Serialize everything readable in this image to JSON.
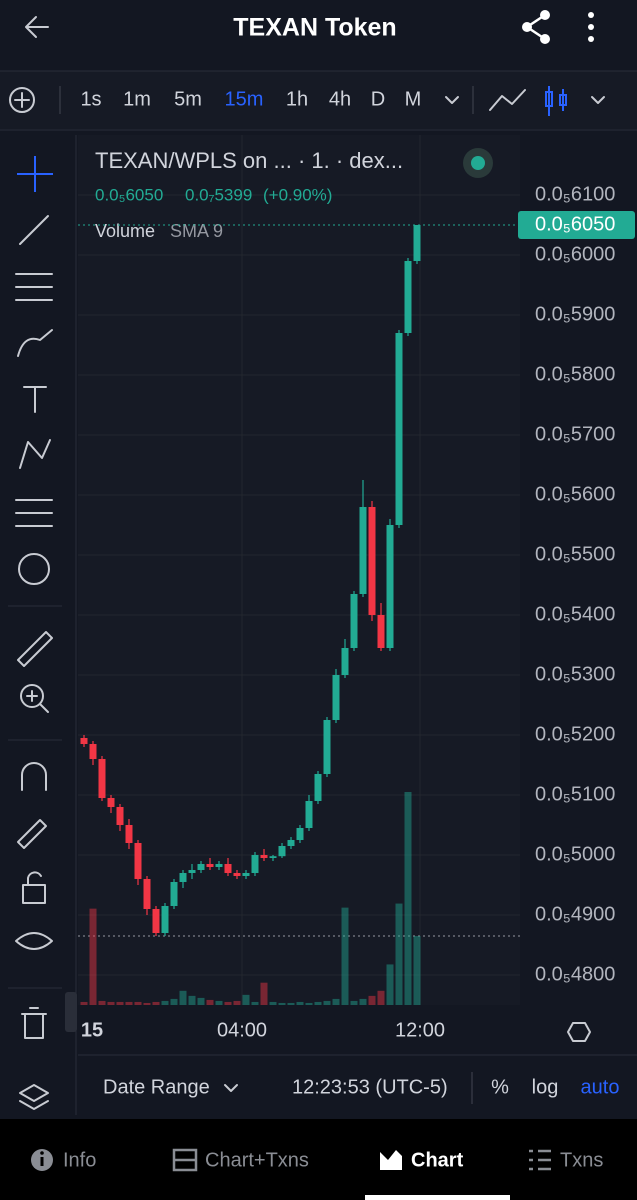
{
  "header": {
    "title": "TEXAN Token"
  },
  "intervals": [
    "1s",
    "1m",
    "5m",
    "15m",
    "1h",
    "4h",
    "D",
    "M"
  ],
  "active_interval": "15m",
  "chart_data": {
    "type": "candlestick",
    "title": "TEXAN/WPLS on ... · 1. · dex...",
    "legend_values": [
      "0.0₅6050",
      "0.0₇5399",
      "(+0.90%)"
    ],
    "volume_label": "Volume",
    "volume_study": "SMA 9",
    "up_color": "#22ab94",
    "down_color": "#f23645",
    "ylim": [
      4.75e-06,
      6.2e-06
    ],
    "yticks": [
      {
        "value": 6.1e-06,
        "label": "0.0₅6100"
      },
      {
        "value": 6e-06,
        "label": "0.0₅6000"
      },
      {
        "value": 5.9e-06,
        "label": "0.0₅5900"
      },
      {
        "value": 5.8e-06,
        "label": "0.0₅5800"
      },
      {
        "value": 5.7e-06,
        "label": "0.0₅5700"
      },
      {
        "value": 5.6e-06,
        "label": "0.0₅5600"
      },
      {
        "value": 5.5e-06,
        "label": "0.0₅5500"
      },
      {
        "value": 5.4e-06,
        "label": "0.0₅5400"
      },
      {
        "value": 5.3e-06,
        "label": "0.0₅5300"
      },
      {
        "value": 5.2e-06,
        "label": "0.0₅5200"
      },
      {
        "value": 5.1e-06,
        "label": "0.0₅5100"
      },
      {
        "value": 5e-06,
        "label": "0.0₅5000"
      },
      {
        "value": 4.9e-06,
        "label": "0.0₅4900"
      },
      {
        "value": 4.8e-06,
        "label": "0.0₅4800"
      }
    ],
    "last_price": {
      "value": 6.05e-06,
      "label": "0.0₅6050"
    },
    "x_labels": [
      "15",
      "04:00",
      "12:00"
    ],
    "open": [
      5.195e-06,
      5.185e-06,
      5.16e-06,
      5.095e-06,
      5.08e-06,
      5.05e-06,
      5.02e-06,
      4.96e-06,
      4.91e-06,
      4.87e-06,
      4.915e-06,
      4.955e-06,
      4.97e-06,
      4.975e-06,
      4.985e-06,
      4.98e-06,
      4.985e-06,
      4.97e-06,
      4.965e-06,
      4.97e-06,
      5e-06,
      4.995e-06,
      4.998e-06,
      5.015e-06,
      5.025e-06,
      5.045e-06,
      5.09e-06,
      5.135e-06,
      5.225e-06,
      5.3e-06,
      5.345e-06,
      5.435e-06,
      5.58e-06,
      5.4e-06,
      5.345e-06,
      5.55e-06,
      5.87e-06,
      5.99e-06
    ],
    "high": [
      5.2e-06,
      5.19e-06,
      5.165e-06,
      5.1e-06,
      5.085e-06,
      5.06e-06,
      5.025e-06,
      4.965e-06,
      4.915e-06,
      4.92e-06,
      4.96e-06,
      4.975e-06,
      4.985e-06,
      4.99e-06,
      4.995e-06,
      4.99e-06,
      4.995e-06,
      4.975e-06,
      4.975e-06,
      5.005e-06,
      5.01e-06,
      5e-06,
      5.02e-06,
      5.03e-06,
      5.05e-06,
      5.1e-06,
      5.14e-06,
      5.23e-06,
      5.31e-06,
      5.36e-06,
      5.44e-06,
      5.625e-06,
      5.59e-06,
      5.42e-06,
      5.56e-06,
      5.875e-06,
      5.995e-06,
      6.05e-06
    ],
    "low": [
      5.18e-06,
      5.15e-06,
      5.09e-06,
      5.07e-06,
      5.04e-06,
      5.01e-06,
      4.95e-06,
      4.9e-06,
      4.865e-06,
      4.865e-06,
      4.91e-06,
      4.945e-06,
      4.96e-06,
      4.97e-06,
      4.975e-06,
      4.975e-06,
      4.965e-06,
      4.96e-06,
      4.96e-06,
      4.965e-06,
      4.99e-06,
      4.99e-06,
      4.995e-06,
      5.01e-06,
      5.02e-06,
      5.04e-06,
      5.085e-06,
      5.13e-06,
      5.22e-06,
      5.295e-06,
      5.34e-06,
      5.43e-06,
      5.39e-06,
      5.34e-06,
      5.34e-06,
      5.545e-06,
      5.865e-06,
      5.985e-06
    ],
    "close": [
      5.185e-06,
      5.16e-06,
      5.095e-06,
      5.08e-06,
      5.05e-06,
      5.02e-06,
      4.96e-06,
      4.91e-06,
      4.87e-06,
      4.915e-06,
      4.955e-06,
      4.97e-06,
      4.975e-06,
      4.985e-06,
      4.98e-06,
      4.985e-06,
      4.97e-06,
      4.965e-06,
      4.97e-06,
      5e-06,
      4.995e-06,
      4.998e-06,
      5.015e-06,
      5.025e-06,
      5.045e-06,
      5.09e-06,
      5.135e-06,
      5.225e-06,
      5.3e-06,
      5.345e-06,
      5.435e-06,
      5.58e-06,
      5.4e-06,
      5.345e-06,
      5.55e-06,
      5.87e-06,
      5.99e-06,
      6.05e-06
    ],
    "volume": [
      3,
      95,
      4,
      3,
      3,
      3,
      3,
      2,
      3,
      4,
      6,
      14,
      9,
      7,
      5,
      4,
      3,
      4,
      10,
      3,
      22,
      3,
      2,
      2,
      3,
      2,
      3,
      4,
      6,
      96,
      4,
      6,
      9,
      14,
      40,
      100,
      210,
      68
    ]
  },
  "footer": {
    "date_range": "Date Range",
    "time": "12:23:53 (UTC-5)",
    "percent": "%",
    "log": "log",
    "auto": "auto"
  },
  "nav": [
    "Info",
    "Chart+Txns",
    "Chart",
    "Txns"
  ],
  "active_nav": "Chart"
}
